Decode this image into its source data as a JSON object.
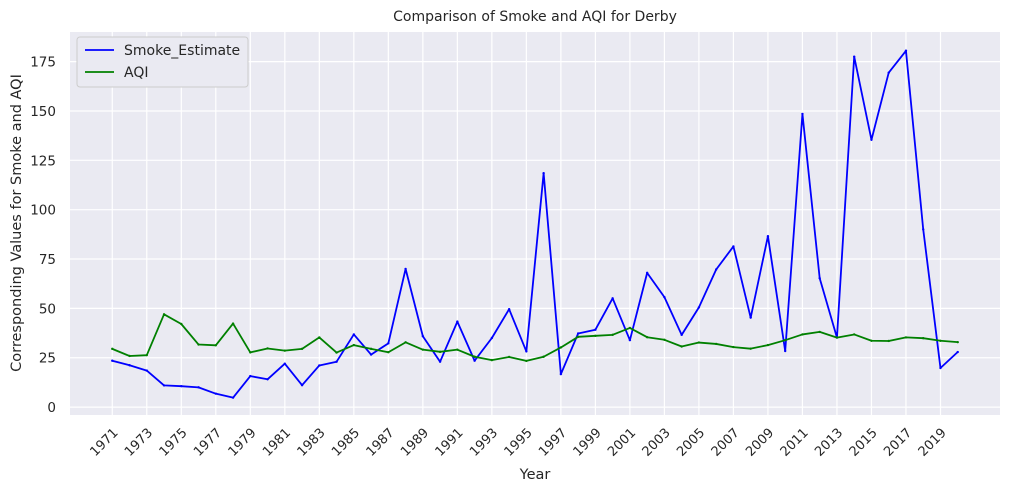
{
  "chart_data": {
    "type": "line",
    "title": "Comparison of Smoke and AQI for Derby",
    "xlabel": "Year",
    "ylabel": "Corresponding Values for Smoke and AQI",
    "xlim": [
      1968.55,
      2022.45
    ],
    "ylim": [
      -4,
      190
    ],
    "grid": true,
    "legend_position": "top-left",
    "x": [
      1971,
      1972,
      1973,
      1974,
      1975,
      1976,
      1977,
      1978,
      1979,
      1980,
      1981,
      1982,
      1983,
      1984,
      1985,
      1986,
      1987,
      1988,
      1989,
      1990,
      1991,
      1992,
      1993,
      1994,
      1995,
      1996,
      1997,
      1998,
      1999,
      2000,
      2001,
      2002,
      2003,
      2004,
      2005,
      2006,
      2007,
      2008,
      2009,
      2010,
      2011,
      2012,
      2013,
      2014,
      2015,
      2016,
      2017,
      2018,
      2019,
      2020
    ],
    "x_tick_labels": [
      "1971",
      "1973",
      "1975",
      "1977",
      "1979",
      "1981",
      "1983",
      "1985",
      "1987",
      "1989",
      "1991",
      "1993",
      "1995",
      "1997",
      "1999",
      "2001",
      "2003",
      "2005",
      "2007",
      "2009",
      "2011",
      "2013",
      "2015",
      "2017",
      "2019"
    ],
    "y_tick_labels": [
      "0",
      "25",
      "50",
      "75",
      "100",
      "125",
      "150",
      "175"
    ],
    "series": [
      {
        "name": "Smoke_Estimate",
        "color": "#0000ff",
        "values": [
          23.5,
          21.2,
          18.5,
          11.0,
          10.6,
          10.0,
          6.8,
          4.8,
          15.7,
          14.1,
          22.0,
          11.1,
          21.1,
          23.0,
          36.8,
          26.6,
          32.3,
          70.0,
          35.9,
          23.0,
          43.3,
          23.5,
          35.0,
          49.6,
          28.2,
          118.5,
          16.7,
          37.3,
          39.2,
          55.1,
          33.9,
          68.0,
          55.7,
          36.6,
          50.5,
          69.7,
          81.4,
          45.3,
          86.6,
          28.4,
          148.5,
          65.3,
          35.2,
          177.5,
          135.4,
          169.4,
          180.5,
          90.0,
          19.8,
          27.9
        ]
      },
      {
        "name": "AQI",
        "color": "#008000",
        "values": [
          29.5,
          25.9,
          26.3,
          47.0,
          42.1,
          31.7,
          31.3,
          42.3,
          27.7,
          29.7,
          28.6,
          29.5,
          35.3,
          27.6,
          31.4,
          29.5,
          27.8,
          32.8,
          29.1,
          28.0,
          29.1,
          25.5,
          23.8,
          25.4,
          23.4,
          25.5,
          30.2,
          35.6,
          36.1,
          36.6,
          40.1,
          35.4,
          34.1,
          30.7,
          32.7,
          32.0,
          30.4,
          29.6,
          31.4,
          33.9,
          36.8,
          38.1,
          35.2,
          36.8,
          33.6,
          33.5,
          35.3,
          34.9,
          33.6,
          32.9
        ]
      }
    ]
  }
}
